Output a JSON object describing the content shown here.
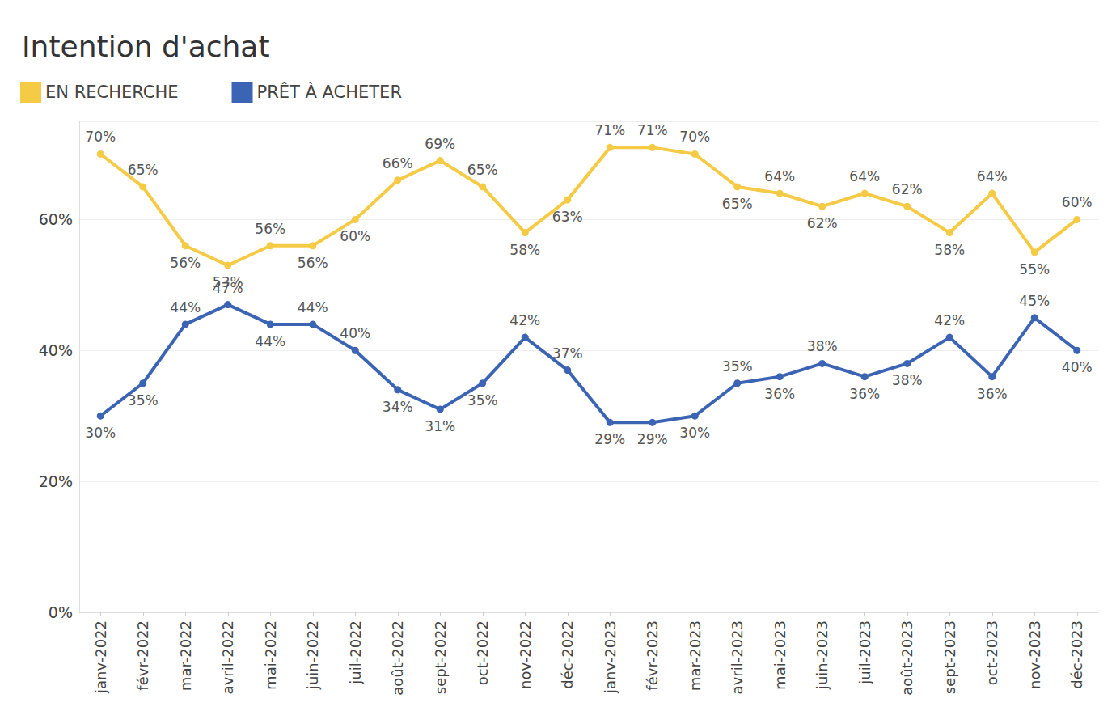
{
  "chart_data": {
    "type": "line",
    "title": "Intention d'achat",
    "categories": [
      "janv-2022",
      "févr-2022",
      "mar-2022",
      "avril-2022",
      "mai-2022",
      "juin-2022",
      "juil-2022",
      "août-2022",
      "sept-2022",
      "oct-2022",
      "nov-2022",
      "déc-2022",
      "janv-2023",
      "févr-2023",
      "mar-2023",
      "avril-2023",
      "mai-2023",
      "juin-2023",
      "juil-2023",
      "août-2023",
      "sept-2023",
      "oct-2023",
      "nov-2023",
      "déc-2023"
    ],
    "series": [
      {
        "name": "EN RECHERCHE",
        "color": "#f5ca45",
        "values": [
          70,
          65,
          56,
          53,
          56,
          56,
          60,
          66,
          69,
          65,
          58,
          63,
          71,
          71,
          70,
          65,
          64,
          62,
          64,
          62,
          58,
          64,
          55,
          60
        ],
        "value_labels": [
          "70%",
          "65%",
          "56%",
          "53%",
          "56%",
          "56%",
          "60%",
          "66%",
          "69%",
          "65%",
          "58%",
          "63%",
          "71%",
          "71%",
          "70%",
          "65%",
          "64%",
          "62%",
          "64%",
          "62%",
          "58%",
          "64%",
          "55%",
          "60%"
        ]
      },
      {
        "name": "PRÊT À ACHETER",
        "color": "#3b64b4",
        "values": [
          30,
          35,
          44,
          47,
          44,
          44,
          40,
          34,
          31,
          35,
          42,
          37,
          29,
          29,
          30,
          35,
          36,
          38,
          36,
          38,
          42,
          36,
          45,
          40
        ],
        "value_labels": [
          "30%",
          "35%",
          "44%",
          "47%",
          "44%",
          "44%",
          "40%",
          "34%",
          "31%",
          "35%",
          "42%",
          "37%",
          "29%",
          "29%",
          "30%",
          "35%",
          "36%",
          "38%",
          "36%",
          "38%",
          "42%",
          "36%",
          "45%",
          "40%"
        ]
      }
    ],
    "ylim": [
      0,
      75
    ],
    "yticks": [
      {
        "value": 0,
        "label": "0%"
      },
      {
        "value": 20,
        "label": "20%"
      },
      {
        "value": 40,
        "label": "40%"
      },
      {
        "value": 60,
        "label": "60%"
      }
    ],
    "grid": true,
    "legend": "top-left",
    "data_labels": true,
    "marker": "circle"
  }
}
